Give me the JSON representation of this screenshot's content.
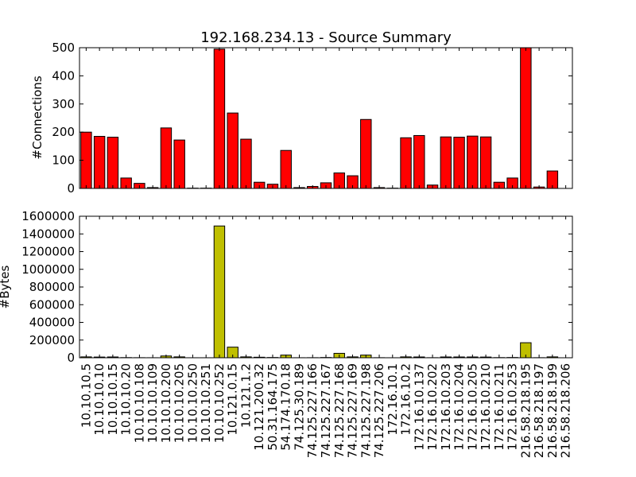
{
  "chart_data": [
    {
      "type": "bar",
      "title": "192.168.234.13 - Source Summary",
      "ylabel": "#Connections",
      "xlabel": "",
      "ylim": [
        0,
        500
      ],
      "yticks": [
        "0",
        "100",
        "200",
        "300",
        "400",
        "500"
      ],
      "bar_color": "#ff0000",
      "grid": false,
      "show_x_tick_labels": false,
      "categories": [
        "10.10.10.5",
        "10.10.10.10",
        "10.10.10.15",
        "10.10.10.20",
        "10.10.10.108",
        "10.10.10.109",
        "10.10.10.200",
        "10.10.10.205",
        "10.10.10.250",
        "10.10.10.251",
        "10.10.10.252",
        "10.121.0.15",
        "10.121.1.2",
        "10.121.200.32",
        "50.31.164.175",
        "54.174.170.18",
        "74.125.30.189",
        "74.125.227.166",
        "74.125.227.167",
        "74.125.227.168",
        "74.125.227.169",
        "74.125.227.198",
        "74.125.227.206",
        "172.16.10.1",
        "172.16.10.2",
        "172.16.10.137",
        "172.16.10.202",
        "172.16.10.203",
        "172.16.10.204",
        "172.16.10.205",
        "172.16.10.210",
        "172.16.10.211",
        "172.16.10.253",
        "216.58.218.195",
        "216.58.218.197",
        "216.58.218.199",
        "216.58.218.206"
      ],
      "values": [
        200,
        185,
        182,
        37,
        18,
        3,
        215,
        172,
        1,
        1,
        495,
        268,
        175,
        22,
        15,
        135,
        3,
        7,
        20,
        55,
        45,
        245,
        3,
        1,
        180,
        188,
        12,
        183,
        182,
        186,
        183,
        22,
        37,
        500,
        5,
        62,
        0
      ]
    },
    {
      "type": "bar",
      "title": "",
      "ylabel": "#Bytes",
      "xlabel": "",
      "ylim": [
        0,
        1600000
      ],
      "yticks": [
        "0",
        "200000",
        "400000",
        "600000",
        "800000",
        "1000000",
        "1200000",
        "1400000",
        "1600000"
      ],
      "bar_color": "#bfbf00",
      "grid": false,
      "show_x_tick_labels": true,
      "categories": [
        "10.10.10.5",
        "10.10.10.10",
        "10.10.10.15",
        "10.10.10.20",
        "10.10.10.108",
        "10.10.10.109",
        "10.10.10.200",
        "10.10.10.205",
        "10.10.10.250",
        "10.10.10.251",
        "10.10.10.252",
        "10.121.0.15",
        "10.121.1.2",
        "10.121.200.32",
        "50.31.164.175",
        "54.174.170.18",
        "74.125.30.189",
        "74.125.227.166",
        "74.125.227.167",
        "74.125.227.168",
        "74.125.227.169",
        "74.125.227.198",
        "74.125.227.206",
        "172.16.10.1",
        "172.16.10.2",
        "172.16.10.137",
        "172.16.10.202",
        "172.16.10.203",
        "172.16.10.204",
        "172.16.10.205",
        "172.16.10.210",
        "172.16.10.211",
        "172.16.10.253",
        "216.58.218.195",
        "216.58.218.197",
        "216.58.218.199",
        "216.58.218.206"
      ],
      "values": [
        10000,
        8000,
        9000,
        2000,
        1000,
        500,
        20000,
        10000,
        200,
        200,
        1490000,
        120000,
        10000,
        6000,
        3000,
        30000,
        500,
        1000,
        3000,
        50000,
        10000,
        30000,
        1000,
        200,
        10000,
        9000,
        1000,
        9000,
        9000,
        9000,
        8000,
        2000,
        3000,
        170000,
        1000,
        10000,
        0
      ]
    }
  ]
}
